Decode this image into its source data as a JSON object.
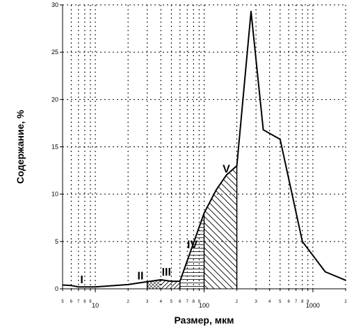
{
  "chart_data": {
    "type": "line",
    "xlabel": "Размер, мкм",
    "ylabel": "Содержание, %",
    "xscale": "log",
    "xlim": [
      5,
      2000
    ],
    "ylim": [
      0,
      30
    ],
    "y_ticks": [
      0,
      5,
      10,
      15,
      20,
      25,
      30
    ],
    "x_major_ticks": [
      10,
      100,
      1000
    ],
    "x_minor_labels": [
      {
        "value": 5,
        "label": "5"
      },
      {
        "value": 6,
        "label": "6"
      },
      {
        "value": 7,
        "label": "7"
      },
      {
        "value": 8,
        "label": "8"
      },
      {
        "value": 9,
        "label": "9"
      },
      {
        "value": 20,
        "label": "2"
      },
      {
        "value": 30,
        "label": "3"
      },
      {
        "value": 40,
        "label": "4"
      },
      {
        "value": 50,
        "label": "5"
      },
      {
        "value": 60,
        "label": "6"
      },
      {
        "value": 70,
        "label": "7"
      },
      {
        "value": 80,
        "label": "8"
      },
      {
        "value": 90,
        "label": "9"
      },
      {
        "value": 200,
        "label": "2"
      },
      {
        "value": 300,
        "label": "3"
      },
      {
        "value": 400,
        "label": "4"
      },
      {
        "value": 500,
        "label": "5"
      },
      {
        "value": 600,
        "label": "6"
      },
      {
        "value": 700,
        "label": "7"
      },
      {
        "value": 800,
        "label": "8"
      },
      {
        "value": 900,
        "label": "9"
      },
      {
        "value": 2000,
        "label": "2"
      }
    ],
    "grid": true,
    "series": [
      {
        "points": [
          [
            5,
            0.4
          ],
          [
            6,
            0.35
          ],
          [
            7,
            0.2
          ],
          [
            10,
            0.2
          ],
          [
            20,
            0.45
          ],
          [
            30,
            0.75
          ],
          [
            40,
            0.95
          ],
          [
            50,
            0.8
          ],
          [
            60,
            0.8
          ],
          [
            100,
            8.0
          ],
          [
            130,
            10.5
          ],
          [
            160,
            12.0
          ],
          [
            200,
            13.0
          ],
          [
            270,
            29.3
          ],
          [
            350,
            16.8
          ],
          [
            500,
            15.8
          ],
          [
            800,
            5.0
          ],
          [
            1300,
            1.8
          ],
          [
            2000,
            0.9
          ]
        ]
      }
    ],
    "zones": [
      {
        "label": "I",
        "x": 7.5,
        "y": 0.6
      },
      {
        "label": "II",
        "x": 26,
        "y": 1.0
      },
      {
        "label": "III",
        "x": 45,
        "y": 1.4
      },
      {
        "label": "IV",
        "x": 78,
        "y": 4.3
      },
      {
        "label": "V",
        "x": 160,
        "y": 12.3
      }
    ],
    "hatched_regions": [
      {
        "from": 30,
        "to": 40,
        "pattern": "cross"
      },
      {
        "from": 40,
        "to": 60,
        "pattern": "diag-up"
      },
      {
        "from": 60,
        "to": 100,
        "pattern": "horizontal"
      },
      {
        "from": 100,
        "to": 200,
        "pattern": "diag-down"
      }
    ],
    "boundaries": [
      30,
      60,
      100,
      200
    ]
  }
}
